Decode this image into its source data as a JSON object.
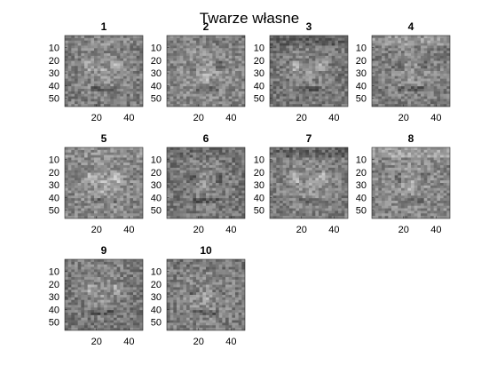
{
  "window": {
    "title": "Twarze własne"
  },
  "chart_data": {
    "type": "heatmap",
    "title": "Twarze własne",
    "colormap": "gray",
    "grid": false,
    "layout": {
      "rows": 3,
      "cols": 4
    },
    "image_size": {
      "width": 48,
      "height": 56
    },
    "xlim": [
      0.5,
      48.5
    ],
    "ylim": [
      0.5,
      56.5
    ],
    "xticks": [
      20,
      40
    ],
    "yticks": [
      10,
      20,
      30,
      40,
      50
    ],
    "xtick_labels": [
      "20",
      "40"
    ],
    "ytick_labels": [
      "10",
      "20",
      "30",
      "40",
      "50"
    ],
    "panels": [
      {
        "title": "1",
        "index": 1
      },
      {
        "title": "2",
        "index": 2
      },
      {
        "title": "3",
        "index": 3
      },
      {
        "title": "4",
        "index": 4
      },
      {
        "title": "5",
        "index": 5
      },
      {
        "title": "6",
        "index": 6
      },
      {
        "title": "7",
        "index": 7
      },
      {
        "title": "8",
        "index": 8
      },
      {
        "title": "9",
        "index": 9
      },
      {
        "title": "10",
        "index": 10
      }
    ]
  }
}
